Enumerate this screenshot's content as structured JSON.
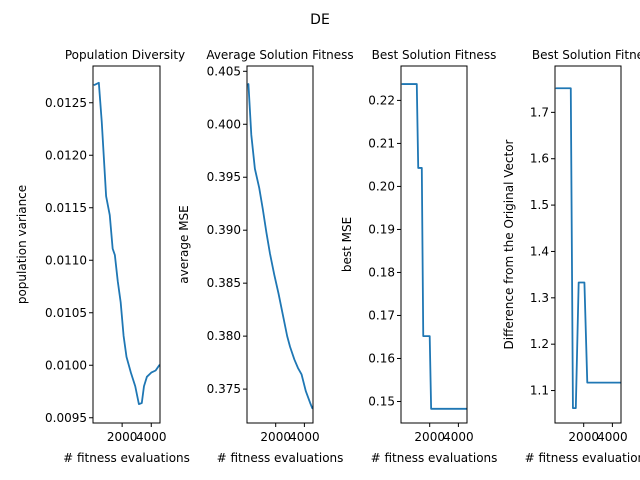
{
  "figure": {
    "title": "DE",
    "line_color": "#1f77b4"
  },
  "chart_data": [
    {
      "type": "line",
      "title": "Population Diversity",
      "xlabel": "# fitness evaluations",
      "ylabel": "population variance",
      "xlim": [
        0,
        4600
      ],
      "ylim": [
        0.00945,
        0.01285
      ],
      "xticks": [
        2000,
        4000
      ],
      "xtick_labels": [
        "2000",
        "4000"
      ],
      "yticks": [
        0.0095,
        0.01,
        0.0105,
        0.011,
        0.0115,
        0.012,
        0.0125
      ],
      "ytick_labels": [
        "0.0095",
        "0.0100",
        "0.0105",
        "0.0110",
        "0.0115",
        "0.0120",
        "0.0125"
      ],
      "series": [
        {
          "x": [
            100,
            400,
            600,
            900,
            1150,
            1350,
            1500,
            1700,
            1900,
            2100,
            2300,
            2600,
            2900,
            3150,
            3350,
            3500,
            3700,
            4000,
            4300,
            4550
          ],
          "y": [
            0.01267,
            0.01269,
            0.01232,
            0.01161,
            0.01143,
            0.01111,
            0.01105,
            0.0108,
            0.0106,
            0.01028,
            0.01008,
            0.00993,
            0.0098,
            0.00963,
            0.00964,
            0.0098,
            0.00989,
            0.00993,
            0.00995,
            0.01
          ]
        }
      ]
    },
    {
      "type": "line",
      "title": "Average Solution Fitness",
      "xlabel": "# fitness evaluations",
      "ylabel": "average MSE",
      "xlim": [
        0,
        4600
      ],
      "ylim": [
        0.3718,
        0.4055
      ],
      "xticks": [
        2000,
        4000
      ],
      "xtick_labels": [
        "2000",
        "4000"
      ],
      "yticks": [
        0.375,
        0.38,
        0.385,
        0.39,
        0.395,
        0.4,
        0.405
      ],
      "ytick_labels": [
        "0.375",
        "0.380",
        "0.385",
        "0.390",
        "0.395",
        "0.400",
        "0.405"
      ],
      "series": [
        {
          "x": [
            100,
            300,
            550,
            850,
            1100,
            1350,
            1600,
            1900,
            2200,
            2500,
            2800,
            3000,
            3300,
            3550,
            3800,
            4100,
            4400,
            4550
          ],
          "y": [
            0.4038,
            0.399,
            0.3958,
            0.394,
            0.392,
            0.3898,
            0.3878,
            0.3858,
            0.384,
            0.382,
            0.38,
            0.379,
            0.3778,
            0.377,
            0.3764,
            0.3748,
            0.3737,
            0.3732
          ]
        }
      ]
    },
    {
      "type": "line",
      "title": "Best Solution Fitness",
      "xlabel": "# fitness evaluations",
      "ylabel": "best MSE",
      "xlim": [
        0,
        4600
      ],
      "ylim": [
        0.145,
        0.228
      ],
      "xticks": [
        2000,
        4000
      ],
      "xtick_labels": [
        "2000",
        "4000"
      ],
      "yticks": [
        0.15,
        0.16,
        0.17,
        0.18,
        0.19,
        0.2,
        0.21,
        0.22
      ],
      "ytick_labels": [
        "0.15",
        "0.16",
        "0.17",
        "0.18",
        "0.19",
        "0.20",
        "0.21",
        "0.22"
      ],
      "series": [
        {
          "x": [
            100,
            1100,
            1200,
            1450,
            1550,
            1850,
            2000,
            2100,
            2500,
            3000,
            4550
          ],
          "y": [
            0.2238,
            0.2238,
            0.2043,
            0.2043,
            0.1652,
            0.1652,
            0.1652,
            0.1483,
            0.1483,
            0.1483,
            0.1483
          ]
        }
      ]
    },
    {
      "type": "line",
      "title": "Best Solution Fitne",
      "xlabel": "# fitness evaluations",
      "ylabel": "Difference from the Original Vector",
      "xlim": [
        0,
        4600
      ],
      "ylim": [
        1.03,
        1.8
      ],
      "xticks": [
        2000,
        4000
      ],
      "xtick_labels": [
        "2000",
        "4000"
      ],
      "yticks": [
        1.1,
        1.2,
        1.3,
        1.4,
        1.5,
        1.6,
        1.7
      ],
      "ytick_labels": [
        "1.1",
        "1.2",
        "1.3",
        "1.4",
        "1.5",
        "1.6",
        "1.7"
      ],
      "series": [
        {
          "x": [
            100,
            1100,
            1250,
            1450,
            1650,
            2050,
            2250,
            2500,
            3000,
            4550
          ],
          "y": [
            1.752,
            1.752,
            1.062,
            1.062,
            1.333,
            1.333,
            1.117,
            1.117,
            1.117,
            1.117
          ]
        }
      ]
    }
  ]
}
